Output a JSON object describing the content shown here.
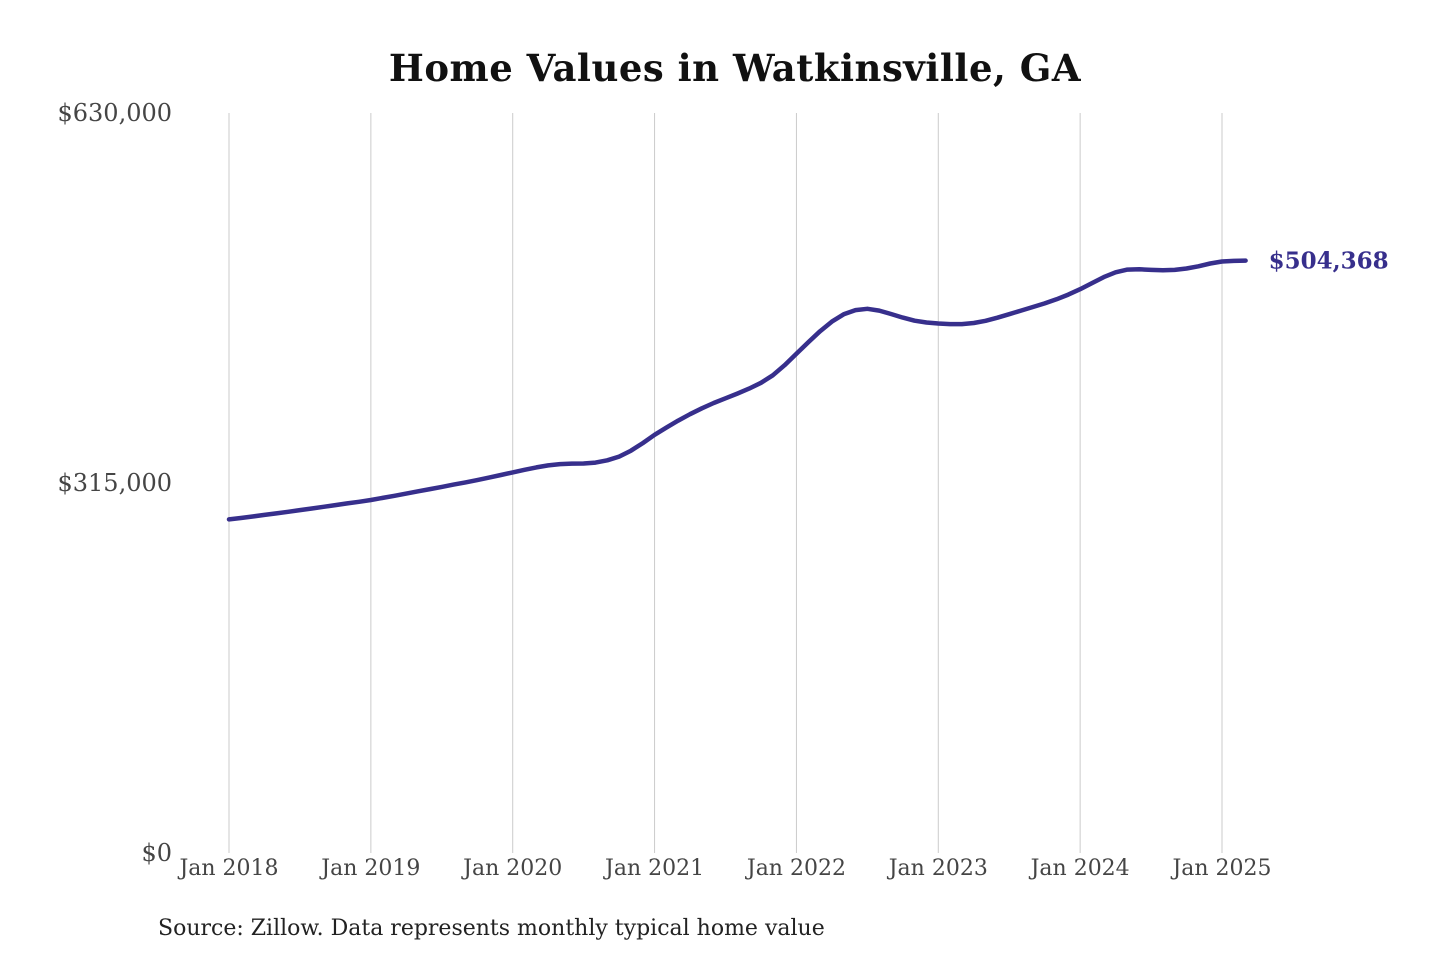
{
  "chart_data": {
    "type": "line",
    "title": "Home Values in Watkinsville, GA",
    "source_note": "Source: Zillow. Data represents monthly typical home value",
    "series_name": "Monthly typical home value",
    "final_value_label": "$504,368",
    "final_value": 504368,
    "grid": "vertical-only",
    "legend": "none",
    "ylim": [
      0,
      630000
    ],
    "y_ticks": [
      {
        "label": "$630,000",
        "value": 630000
      },
      {
        "label": "$315,000",
        "value": 315000
      },
      {
        "label": "$0",
        "value": 0
      }
    ],
    "x_ticks": [
      {
        "label": "Jan 2018",
        "month_index": 0
      },
      {
        "label": "Jan 2019",
        "month_index": 12
      },
      {
        "label": "Jan 2020",
        "month_index": 24
      },
      {
        "label": "Jan 2021",
        "month_index": 36
      },
      {
        "label": "Jan 2022",
        "month_index": 48
      },
      {
        "label": "Jan 2023",
        "month_index": 60
      },
      {
        "label": "Jan 2024",
        "month_index": 72
      },
      {
        "label": "Jan 2025",
        "month_index": 84
      }
    ],
    "x": [
      "Jan 2018",
      "Feb 2018",
      "Mar 2018",
      "Apr 2018",
      "May 2018",
      "Jun 2018",
      "Jul 2018",
      "Aug 2018",
      "Sep 2018",
      "Oct 2018",
      "Nov 2018",
      "Dec 2018",
      "Jan 2019",
      "Feb 2019",
      "Mar 2019",
      "Apr 2019",
      "May 2019",
      "Jun 2019",
      "Jul 2019",
      "Aug 2019",
      "Sep 2019",
      "Oct 2019",
      "Nov 2019",
      "Dec 2019",
      "Jan 2020",
      "Feb 2020",
      "Mar 2020",
      "Apr 2020",
      "May 2020",
      "Jun 2020",
      "Jul 2020",
      "Aug 2020",
      "Sep 2020",
      "Oct 2020",
      "Nov 2020",
      "Dec 2020",
      "Jan 2021",
      "Feb 2021",
      "Mar 2021",
      "Apr 2021",
      "May 2021",
      "Jun 2021",
      "Jul 2021",
      "Aug 2021",
      "Sep 2021",
      "Oct 2021",
      "Nov 2021",
      "Dec 2021",
      "Jan 2022",
      "Feb 2022",
      "Mar 2022",
      "Apr 2022",
      "May 2022",
      "Jun 2022",
      "Jul 2022",
      "Aug 2022",
      "Sep 2022",
      "Oct 2022",
      "Nov 2022",
      "Dec 2022",
      "Jan 2023",
      "Feb 2023",
      "Mar 2023",
      "Apr 2023",
      "May 2023",
      "Jun 2023",
      "Jul 2023",
      "Aug 2023",
      "Sep 2023",
      "Oct 2023",
      "Nov 2023",
      "Dec 2023",
      "Jan 2024",
      "Feb 2024",
      "Mar 2024",
      "Apr 2024",
      "May 2024",
      "Jun 2024",
      "Jul 2024",
      "Aug 2024",
      "Sep 2024",
      "Oct 2024",
      "Nov 2024",
      "Dec 2024",
      "Jan 2025",
      "Feb 2025",
      "Mar 2025"
    ],
    "values": [
      284000,
      285200,
      286500,
      287800,
      289100,
      290500,
      291900,
      293300,
      294700,
      296200,
      297600,
      299000,
      300500,
      302300,
      304100,
      306000,
      307900,
      309800,
      311700,
      313600,
      315500,
      317500,
      319600,
      321800,
      324000,
      326200,
      328300,
      330000,
      331100,
      331500,
      331600,
      332400,
      334300,
      337500,
      342500,
      349000,
      356000,
      362200,
      368100,
      373600,
      378600,
      383100,
      387100,
      391100,
      395400,
      400300,
      406700,
      415300,
      425000,
      434800,
      444200,
      452400,
      458600,
      462200,
      463300,
      461800,
      458900,
      455800,
      453200,
      451600,
      450800,
      450300,
      450300,
      451200,
      453100,
      455700,
      458700,
      461800,
      464800,
      467900,
      471400,
      475400,
      480000,
      485200,
      490300,
      494400,
      496700,
      496900,
      496400,
      496100,
      496400,
      497600,
      499500,
      501900,
      503600,
      504100,
      504368
    ],
    "colors": {
      "line": "#372f8c",
      "gridline": "#cbcbcb",
      "title": "#111111",
      "y_label": "#454545",
      "x_label": "#454545",
      "end_label": "#372f8c",
      "source": "#222222",
      "background": "#ffffff"
    }
  }
}
